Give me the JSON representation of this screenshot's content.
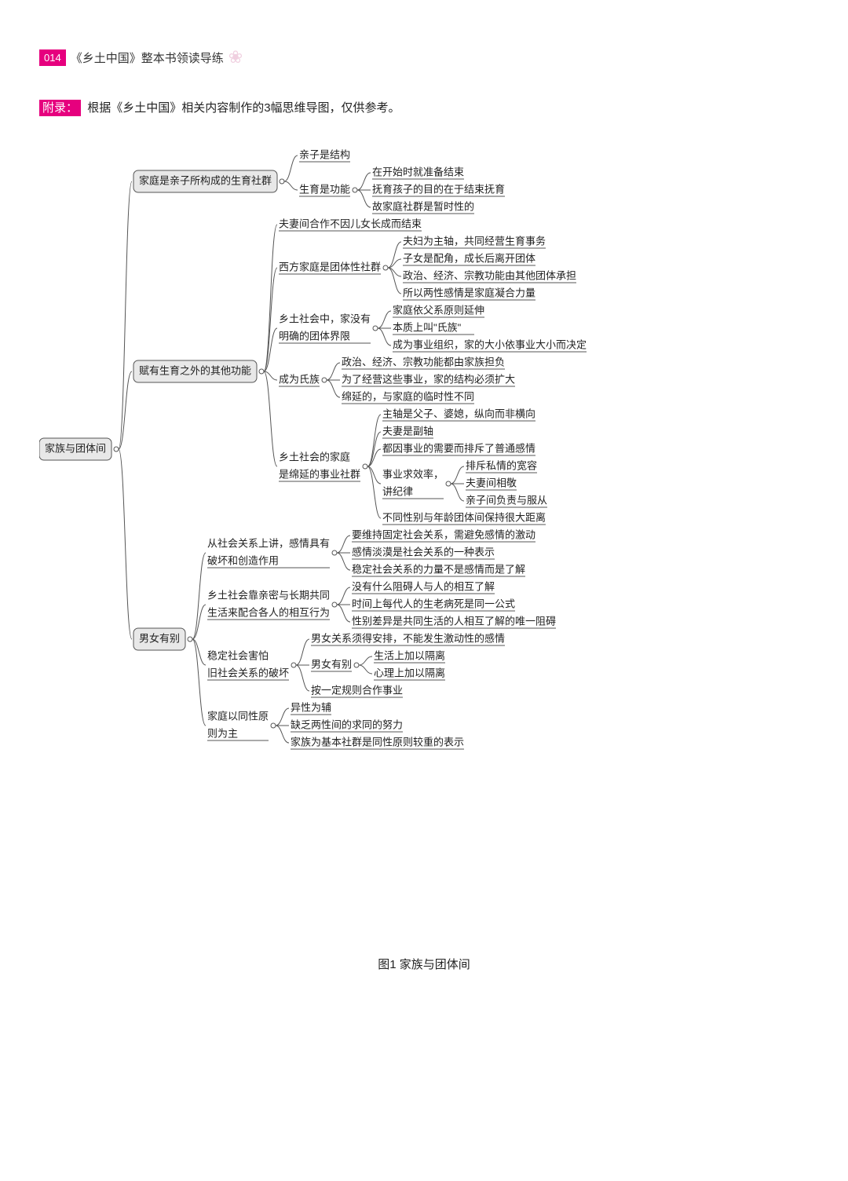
{
  "header": {
    "page_number": "014",
    "book_title": "《乡土中国》整本书领读导练"
  },
  "appendix": {
    "label": "附录：",
    "text": "根据《乡土中国》相关内容制作的3幅思维导图，仅供参考。"
  },
  "caption": "图1 家族与团体间",
  "colors": {
    "accent": "#e6007e",
    "box_fill": "#e8e8e8",
    "box_stroke": "#555555",
    "text": "#222222",
    "line": "#555555",
    "background": "#ffffff"
  },
  "mindmap": {
    "root": "家族与团体间",
    "branches": [
      {
        "label": "家庭是亲子所构成的生育社群",
        "children": [
          {
            "label": "亲子是结构"
          },
          {
            "label": "生育是功能",
            "children": [
              {
                "label": "在开始时就准备结束"
              },
              {
                "label": "抚育孩子的目的在于结束抚育"
              },
              {
                "label": "故家庭社群是暂时性的"
              }
            ]
          }
        ]
      },
      {
        "label": "赋有生育之外的其他功能",
        "children": [
          {
            "label": "夫妻间合作不因儿女长成而结束"
          },
          {
            "label": "西方家庭是团体性社群",
            "children": [
              {
                "label": "夫妇为主轴，共同经营生育事务"
              },
              {
                "label": "子女是配角，成长后离开团体"
              },
              {
                "label": "政治、经济、宗教功能由其他团体承担"
              },
              {
                "label": "所以两性感情是家庭凝合力量"
              }
            ]
          },
          {
            "label_lines": [
              "乡土社会中，家没有",
              "明确的团体界限"
            ],
            "children": [
              {
                "label": "家庭依父系原则延伸"
              },
              {
                "label": "本质上叫\"氏族\""
              },
              {
                "label": "成为事业组织，家的大小依事业大小而决定"
              }
            ]
          },
          {
            "label": "成为氏族",
            "children": [
              {
                "label": "政治、经济、宗教功能都由家族担负"
              },
              {
                "label": "为了经营这些事业，家的结构必须扩大"
              },
              {
                "label": "绵延的，与家庭的临时性不同"
              }
            ]
          },
          {
            "label_lines": [
              "乡土社会的家庭",
              "是绵延的事业社群"
            ],
            "children": [
              {
                "label": "主轴是父子、婆媳，纵向而非横向"
              },
              {
                "label": "夫妻是副轴"
              },
              {
                "label": "都因事业的需要而排斥了普通感情"
              },
              {
                "label_lines": [
                  "事业求效率，",
                  "讲纪律"
                ],
                "children": [
                  {
                    "label": "排斥私情的宽容"
                  },
                  {
                    "label": "夫妻间相敬"
                  },
                  {
                    "label": "亲子间负责与服从"
                  }
                ]
              },
              {
                "label": "不同性别与年龄团体间保持很大距离"
              }
            ]
          }
        ]
      },
      {
        "label": "男女有别",
        "children": [
          {
            "label_lines": [
              "从社会关系上讲，感情具有",
              "破坏和创造作用"
            ],
            "children": [
              {
                "label": "要维持固定社会关系，需避免感情的激动"
              },
              {
                "label": "感情淡漠是社会关系的一种表示"
              },
              {
                "label": "稳定社会关系的力量不是感情而是了解"
              }
            ]
          },
          {
            "label_lines": [
              "乡土社会靠亲密与长期共同",
              "生活来配合各人的相互行为"
            ],
            "children": [
              {
                "label": "没有什么阻碍人与人的相互了解"
              },
              {
                "label": "时间上每代人的生老病死是同一公式"
              },
              {
                "label": "性别差异是共同生活的人相互了解的唯一阻碍"
              }
            ]
          },
          {
            "label_lines": [
              "稳定社会害怕",
              "旧社会关系的破坏"
            ],
            "children": [
              {
                "label": "男女关系须得安排，不能发生激动性的感情"
              },
              {
                "label": "男女有别",
                "children": [
                  {
                    "label": "生活上加以隔离"
                  },
                  {
                    "label": "心理上加以隔离"
                  }
                ]
              },
              {
                "label": "按一定规则合作事业"
              }
            ]
          },
          {
            "label_lines": [
              "家庭以同性原",
              "则为主"
            ],
            "children": [
              {
                "label": "异性为辅"
              },
              {
                "label": "缺乏两性间的求同的努力"
              },
              {
                "label": "家族为基本社群是同性原则较重的表示"
              }
            ]
          }
        ]
      }
    ]
  }
}
